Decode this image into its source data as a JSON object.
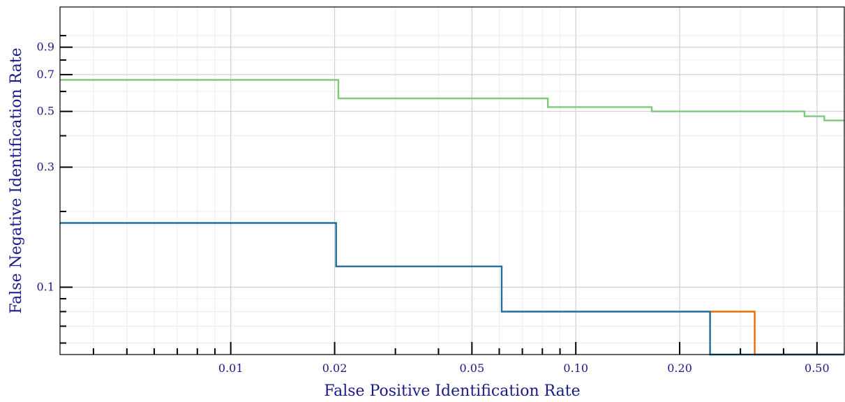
{
  "chart_data": {
    "type": "line",
    "title": "",
    "xlabel": "False Positive Identification Rate",
    "ylabel": "False Negative Identification Rate",
    "x_scale": "log",
    "y_scale": "log",
    "xlim": [
      0.0032,
      0.6
    ],
    "ylim": [
      0.054,
      1.3
    ],
    "grid": true,
    "legend": "none",
    "x_ticks": [
      {
        "value": 0.01,
        "label": "0.01"
      },
      {
        "value": 0.02,
        "label": "0.02"
      },
      {
        "value": 0.05,
        "label": "0.05"
      },
      {
        "value": 0.1,
        "label": "0.10"
      },
      {
        "value": 0.2,
        "label": "0.20"
      },
      {
        "value": 0.5,
        "label": "0.50"
      }
    ],
    "y_ticks": [
      {
        "value": 0.1,
        "label": "0.1"
      },
      {
        "value": 0.3,
        "label": "0.3"
      },
      {
        "value": 0.5,
        "label": "0.5"
      },
      {
        "value": 0.7,
        "label": "0.7"
      },
      {
        "value": 0.9,
        "label": "0.9"
      }
    ],
    "series": [
      {
        "color": "#7fc97f",
        "x": [
          0.0032,
          0.0205,
          0.0205,
          0.083,
          0.083,
          0.166,
          0.166,
          0.46,
          0.46,
          0.525,
          0.525,
          0.6
        ],
        "y": [
          0.667,
          0.667,
          0.563,
          0.563,
          0.52,
          0.52,
          0.5,
          0.5,
          0.478,
          0.478,
          0.46,
          0.46
        ]
      },
      {
        "color": "#ef6c00",
        "x": [
          0.245,
          0.33,
          0.33,
          0.6
        ],
        "y": [
          0.08,
          0.08,
          0.054,
          0.054
        ]
      },
      {
        "color": "#1f6f9f",
        "x": [
          0.0032,
          0.0202,
          0.0202,
          0.061,
          0.061,
          0.245,
          0.245,
          0.6
        ],
        "y": [
          0.18,
          0.18,
          0.121,
          0.121,
          0.08,
          0.08,
          0.054,
          0.054
        ]
      }
    ]
  }
}
